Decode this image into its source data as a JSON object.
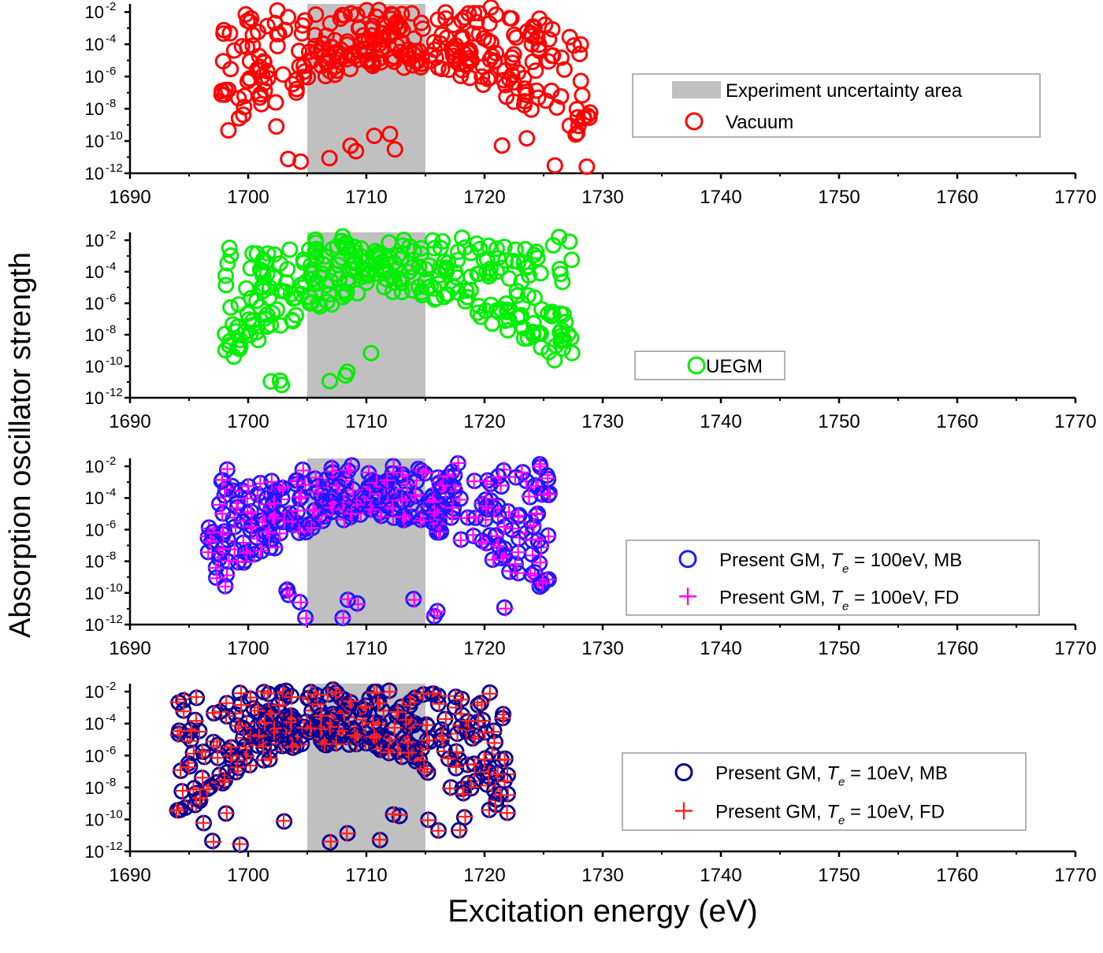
{
  "figure": {
    "ylabel": "Absorption oscillator strength",
    "xlabel": "Excitation energy (eV)"
  },
  "colors": {
    "band": "#c0c0c0",
    "vacuum": "#ff0000",
    "uegm": "#00ee00",
    "gm100_mb": "#1a1aff",
    "gm100_fd": "#ff00ff",
    "gm10_mb": "#000099",
    "gm10_fd": "#ff2020"
  },
  "chart_data": [
    {
      "type": "scatter",
      "title": "",
      "xlim": [
        1690,
        1770
      ],
      "xticks": [
        1690,
        1700,
        1710,
        1720,
        1730,
        1740,
        1750,
        1760,
        1770
      ],
      "ylim_log10": [
        -12,
        -1.5
      ],
      "ytick_exponents": [
        -12,
        -10,
        -8,
        -6,
        -4,
        -2
      ],
      "shaded_band": {
        "x": [
          1705,
          1715
        ],
        "label": "Experiment uncertainty area"
      },
      "legend_position": "right",
      "series": [
        {
          "name": "Vacuum",
          "marker": "circle",
          "color_key": "vacuum",
          "cluster": {
            "xmin": 1697.5,
            "xmax": 1729,
            "top": -1.7
          }
        }
      ]
    },
    {
      "type": "scatter",
      "title": "",
      "xlim": [
        1690,
        1770
      ],
      "xticks": [
        1690,
        1700,
        1710,
        1720,
        1730,
        1740,
        1750,
        1760,
        1770
      ],
      "ylim_log10": [
        -12,
        -1.5
      ],
      "ytick_exponents": [
        -12,
        -10,
        -8,
        -6,
        -4,
        -2
      ],
      "shaded_band": {
        "x": [
          1705,
          1715
        ]
      },
      "legend_position": "right",
      "series": [
        {
          "name": "UEGM",
          "marker": "circle",
          "color_key": "uegm",
          "cluster": {
            "xmin": 1698,
            "xmax": 1727.5,
            "top": -1.7
          }
        }
      ]
    },
    {
      "type": "scatter",
      "title": "",
      "xlim": [
        1690,
        1770
      ],
      "xticks": [
        1690,
        1700,
        1710,
        1720,
        1730,
        1740,
        1750,
        1760,
        1770
      ],
      "ylim_log10": [
        -12,
        -1.5
      ],
      "ytick_exponents": [
        -12,
        -10,
        -8,
        -6,
        -4,
        -2
      ],
      "shaded_band": {
        "x": [
          1705,
          1715
        ]
      },
      "legend_position": "right",
      "series": [
        {
          "name_pre": "Present GM,  ",
          "name_var": "T",
          "name_sub": "e",
          "name_post": " = 100eV, MB",
          "marker": "circle",
          "color_key": "gm100_mb",
          "cluster": {
            "xmin": 1696.5,
            "xmax": 1725.5,
            "top": -1.7
          }
        },
        {
          "name_pre": "Present GM,  ",
          "name_var": "T",
          "name_sub": "e",
          "name_post": " = 100eV, FD",
          "marker": "plus",
          "color_key": "gm100_fd",
          "cluster": {
            "xmin": 1696.5,
            "xmax": 1725.5,
            "top": -1.7
          }
        }
      ]
    },
    {
      "type": "scatter",
      "title": "",
      "xlim": [
        1690,
        1770
      ],
      "xticks": [
        1690,
        1700,
        1710,
        1720,
        1730,
        1740,
        1750,
        1760,
        1770
      ],
      "ylim_log10": [
        -12,
        -1.5
      ],
      "ytick_exponents": [
        -12,
        -10,
        -8,
        -6,
        -4,
        -2
      ],
      "shaded_band": {
        "x": [
          1705,
          1715
        ]
      },
      "legend_position": "right",
      "series": [
        {
          "name_pre": "Present GM,  ",
          "name_var": "T",
          "name_sub": "e",
          "name_post": " = 10eV, MB",
          "marker": "circle",
          "color_key": "gm10_mb",
          "cluster": {
            "xmin": 1694,
            "xmax": 1722,
            "top": -1.7
          }
        },
        {
          "name_pre": "Present GM,  ",
          "name_var": "T",
          "name_sub": "e",
          "name_post": " = 10eV, FD",
          "marker": "plus",
          "color_key": "gm10_fd",
          "cluster": {
            "xmin": 1694,
            "xmax": 1722,
            "top": -1.7
          }
        }
      ]
    }
  ]
}
